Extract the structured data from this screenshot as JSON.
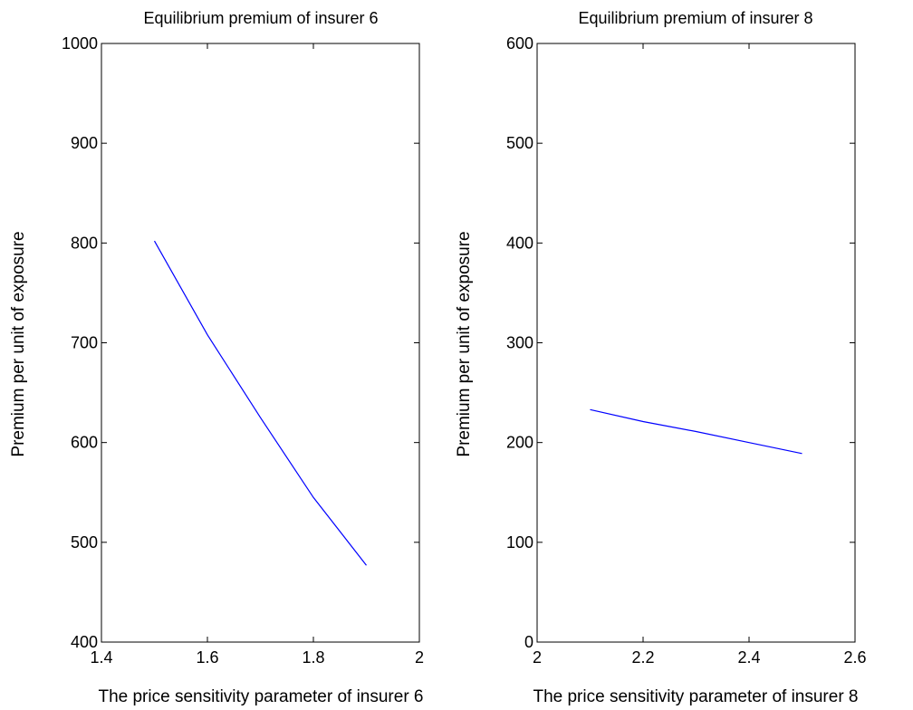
{
  "chart_data": [
    {
      "type": "line",
      "title": "Equilibrium premium of insurer 6",
      "xlabel": "The price sensitivity parameter of insurer 6",
      "ylabel": "Premium per unit of exposure",
      "xlim": [
        1.4,
        2
      ],
      "ylim": [
        400,
        1000
      ],
      "xticks": [
        1.4,
        1.6,
        1.8,
        2
      ],
      "xtick_labels": [
        "1.4",
        "1.6",
        "1.8",
        "2"
      ],
      "yticks": [
        400,
        500,
        600,
        700,
        800,
        900,
        1000
      ],
      "ytick_labels": [
        "400",
        "500",
        "600",
        "700",
        "800",
        "900",
        "1000"
      ],
      "grid": false,
      "series": [
        {
          "color": "#0000ff",
          "x": [
            1.5,
            1.6,
            1.7,
            1.8,
            1.9
          ],
          "y": [
            802,
            708,
            625,
            545,
            477
          ]
        }
      ]
    },
    {
      "type": "line",
      "title": "Equilibrium premium of insurer 8",
      "xlabel": "The price sensitivity parameter of insurer 8",
      "ylabel": "Premium per unit of exposure",
      "xlim": [
        2,
        2.6
      ],
      "ylim": [
        0,
        600
      ],
      "xticks": [
        2,
        2.2,
        2.4,
        2.6
      ],
      "xtick_labels": [
        "2",
        "2.2",
        "2.4",
        "2.6"
      ],
      "yticks": [
        0,
        100,
        200,
        300,
        400,
        500,
        600
      ],
      "ytick_labels": [
        "0",
        "100",
        "200",
        "300",
        "400",
        "500",
        "600"
      ],
      "grid": false,
      "series": [
        {
          "color": "#0000ff",
          "x": [
            2.1,
            2.2,
            2.3,
            2.4,
            2.5
          ],
          "y": [
            233,
            221,
            211,
            200,
            189
          ]
        }
      ]
    }
  ]
}
